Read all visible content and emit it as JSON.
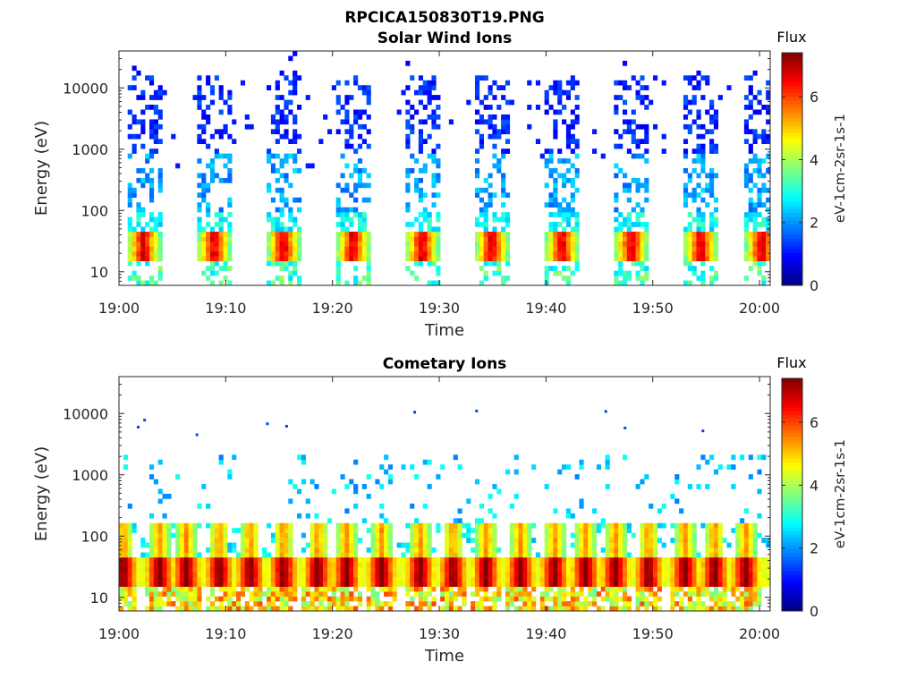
{
  "figure_title": "RPCICA150830T19.PNG",
  "panels": [
    {
      "title": "Solar Wind Ions",
      "xlabel": "Time",
      "ylabel": "Energy (eV)",
      "colorbar_title": "Flux",
      "colorbar_label": "eV-1cm-2sr-1s-1"
    },
    {
      "title": "Cometary Ions",
      "xlabel": "Time",
      "ylabel": "Energy (eV)",
      "colorbar_title": "Flux",
      "colorbar_label": "eV-1cm-2sr-1s-1"
    }
  ],
  "chart_data": [
    {
      "type": "heatmap",
      "title": "Solar Wind Ions",
      "xlabel": "Time",
      "ylabel": "Energy (eV)",
      "x_range": [
        "19:00",
        "20:01"
      ],
      "x_ticks": [
        "19:00",
        "19:10",
        "19:20",
        "19:30",
        "19:40",
        "19:50",
        "20:00"
      ],
      "y_scale": "log",
      "y_range": [
        6,
        40000
      ],
      "y_ticks": [
        10,
        100,
        1000,
        10000
      ],
      "y_tick_labels": [
        "10",
        "100",
        "1000",
        "10000"
      ],
      "colorbar": {
        "label": "Flux",
        "units": "eV-1cm-2sr-1s-1",
        "range": [
          0,
          7.4
        ],
        "ticks": [
          0,
          2,
          4,
          6
        ],
        "colormap": "jet"
      },
      "scan_centers_min": [
        2.3,
        8.9,
        15.4,
        21.9,
        28.4,
        34.9,
        41.5,
        48.0,
        54.5,
        60.2
      ],
      "scan_width_min": 3.3,
      "peak_energy_eV": [
        15,
        40
      ],
      "peak_flux": 6.5,
      "background_energy_range_eV": [
        100,
        30000
      ],
      "background_flux": 1.0
    },
    {
      "type": "heatmap",
      "title": "Cometary Ions",
      "xlabel": "Time",
      "ylabel": "Energy (eV)",
      "x_range": [
        "19:00",
        "20:01"
      ],
      "x_ticks": [
        "19:00",
        "19:10",
        "19:20",
        "19:30",
        "19:40",
        "19:50",
        "20:00"
      ],
      "y_scale": "log",
      "y_range": [
        6,
        40000
      ],
      "y_ticks": [
        10,
        100,
        1000,
        10000
      ],
      "y_tick_labels": [
        "10",
        "100",
        "1000",
        "10000"
      ],
      "colorbar": {
        "label": "Flux",
        "units": "eV-1cm-2sr-1s-1",
        "range": [
          0,
          7.4
        ],
        "ticks": [
          0,
          2,
          4,
          6
        ],
        "colormap": "jet"
      },
      "scan_centers_min": [
        0.4,
        3.8,
        6.3,
        9.4,
        12.3,
        15.4,
        18.6,
        21.3,
        24.6,
        28.2,
        31.3,
        34.4,
        37.6,
        40.8,
        43.7,
        46.5,
        49.6,
        53.0,
        55.8,
        58.7
      ],
      "scan_width_min": 2.8,
      "peak_energy_eV": [
        15,
        45
      ],
      "peak_flux": 7.4,
      "sparse_points_eV": [
        [
          1.8,
          6000
        ],
        [
          2.4,
          7800
        ],
        [
          7.3,
          4500
        ],
        [
          13.9,
          6800
        ],
        [
          15.7,
          6200
        ],
        [
          27.7,
          10500
        ],
        [
          33.5,
          11000
        ],
        [
          45.6,
          10800
        ],
        [
          47.4,
          5800
        ],
        [
          54.7,
          5200
        ]
      ]
    }
  ]
}
